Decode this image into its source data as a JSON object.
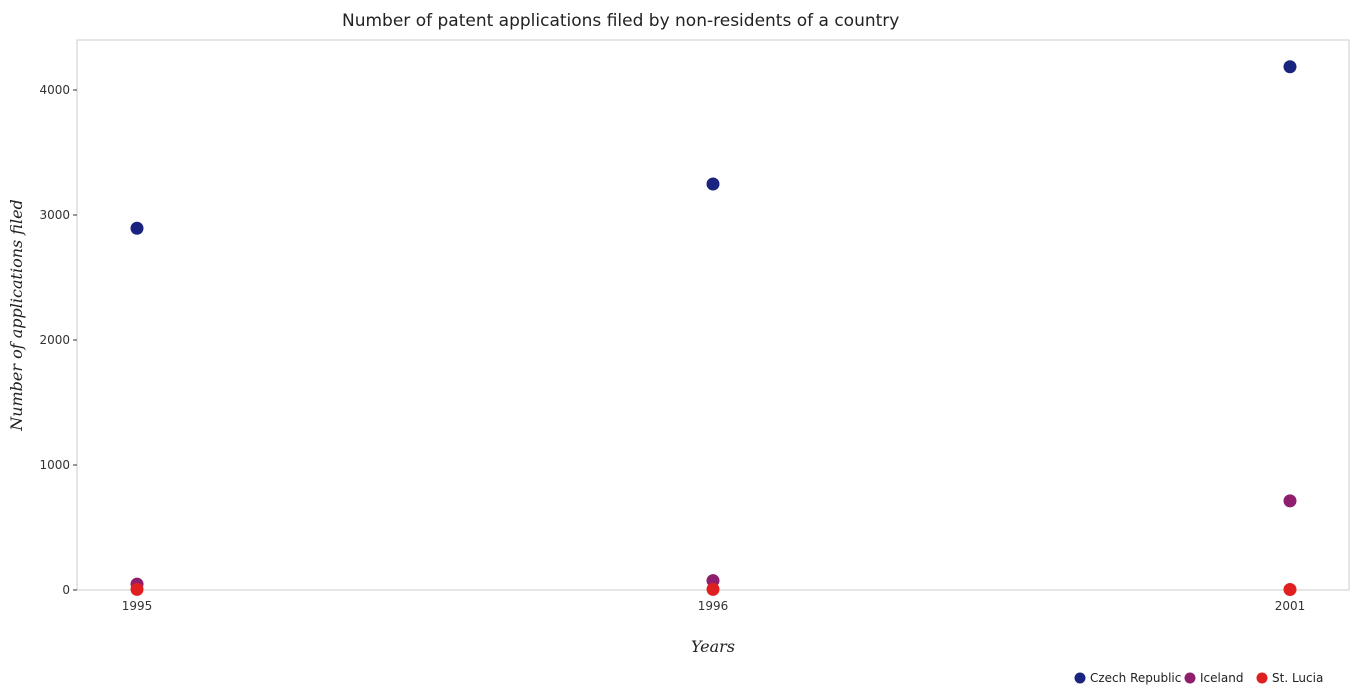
{
  "chart_data": {
    "type": "scatter",
    "title": "Number of patent applications filed by non-residents of a country",
    "xlabel": "Years",
    "ylabel": "Number of applications filed",
    "categories": [
      "1995",
      "1996",
      "2001"
    ],
    "ylim": [
      0,
      4400
    ],
    "yticks": [
      0,
      1000,
      2000,
      3000,
      4000
    ],
    "grid": false,
    "legend_position": "bottom-right",
    "series": [
      {
        "name": "Czech Republic",
        "color": "#1a237e",
        "values": [
          2894,
          3248,
          4186
        ]
      },
      {
        "name": "Iceland",
        "color": "#8e1f6e",
        "values": [
          47,
          75,
          713
        ]
      },
      {
        "name": "St. Lucia",
        "color": "#e02020",
        "values": [
          5,
          5,
          4
        ]
      }
    ]
  }
}
